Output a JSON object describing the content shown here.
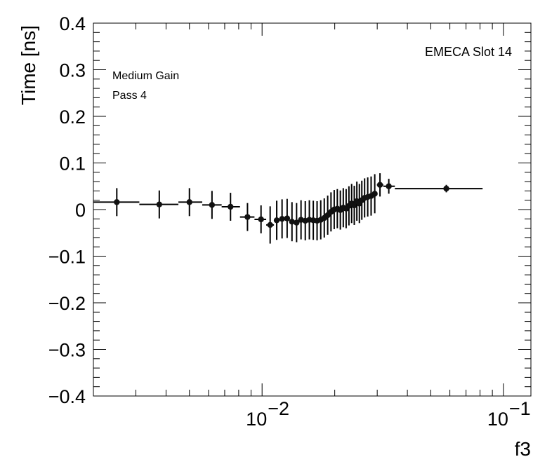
{
  "chart_data": {
    "type": "scatter",
    "xlabel": "f3",
    "ylabel": "Time [ns]",
    "x_scale": "log",
    "xlim": [
      0.002,
      0.13
    ],
    "ylim": [
      -0.4,
      0.4
    ],
    "y_ticks": [
      {
        "value": 0.4,
        "label": "0.4"
      },
      {
        "value": 0.3,
        "label": "0.3"
      },
      {
        "value": 0.2,
        "label": "0.2"
      },
      {
        "value": 0.1,
        "label": "0.1"
      },
      {
        "value": 0.0,
        "label": "0"
      },
      {
        "value": -0.1,
        "label": "−0.1"
      },
      {
        "value": -0.2,
        "label": "−0.2"
      },
      {
        "value": -0.3,
        "label": "−0.3"
      },
      {
        "value": -0.4,
        "label": "−0.4"
      }
    ],
    "x_ticks": [
      {
        "value": 0.01,
        "base": "10",
        "exp": "−2"
      },
      {
        "value": 0.1,
        "base": "10",
        "exp": "−1"
      }
    ],
    "annotations": {
      "top_left_1": "Medium Gain",
      "top_left_2": "Pass 4",
      "top_right": "EMECA Slot 14"
    },
    "grid": false,
    "points": [
      {
        "x": 0.0025,
        "y": 0.016,
        "xlo": 0.002,
        "xhi": 0.0031,
        "yerr": 0.03
      },
      {
        "x": 0.00375,
        "y": 0.011,
        "xlo": 0.0031,
        "xhi": 0.0045,
        "yerr": 0.03
      },
      {
        "x": 0.005,
        "y": 0.016,
        "xlo": 0.0045,
        "xhi": 0.00565,
        "yerr": 0.03
      },
      {
        "x": 0.0062,
        "y": 0.01,
        "xlo": 0.00565,
        "xhi": 0.0068,
        "yerr": 0.03
      },
      {
        "x": 0.0074,
        "y": 0.006,
        "xlo": 0.0068,
        "xhi": 0.0081,
        "yerr": 0.03
      },
      {
        "x": 0.0087,
        "y": -0.016,
        "xlo": 0.0081,
        "xhi": 0.0093,
        "yerr": 0.03
      },
      {
        "x": 0.0099,
        "y": -0.021,
        "xlo": 0.0093,
        "xhi": 0.0104,
        "yerr": 0.03
      },
      {
        "x": 0.0108,
        "y": -0.033,
        "xlo": 0.0104,
        "xhi": 0.0112,
        "yerr": 0.04
      },
      {
        "x": 0.0115,
        "y": -0.023,
        "xlo": 0.0112,
        "xhi": 0.0118,
        "yerr": 0.042
      },
      {
        "x": 0.0121,
        "y": -0.02,
        "xlo": 0.0118,
        "xhi": 0.0124,
        "yerr": 0.042
      },
      {
        "x": 0.0127,
        "y": -0.019,
        "xlo": 0.0124,
        "xhi": 0.013,
        "yerr": 0.042
      },
      {
        "x": 0.0133,
        "y": -0.026,
        "xlo": 0.013,
        "xhi": 0.0136,
        "yerr": 0.042
      },
      {
        "x": 0.0139,
        "y": -0.028,
        "xlo": 0.0136,
        "xhi": 0.0142,
        "yerr": 0.042
      },
      {
        "x": 0.0145,
        "y": -0.022,
        "xlo": 0.0142,
        "xhi": 0.0148,
        "yerr": 0.042
      },
      {
        "x": 0.0151,
        "y": -0.024,
        "xlo": 0.0148,
        "xhi": 0.0154,
        "yerr": 0.042
      },
      {
        "x": 0.0157,
        "y": -0.022,
        "xlo": 0.0154,
        "xhi": 0.016,
        "yerr": 0.042
      },
      {
        "x": 0.0163,
        "y": -0.023,
        "xlo": 0.016,
        "xhi": 0.0166,
        "yerr": 0.042
      },
      {
        "x": 0.0169,
        "y": -0.024,
        "xlo": 0.0166,
        "xhi": 0.0172,
        "yerr": 0.042
      },
      {
        "x": 0.0175,
        "y": -0.022,
        "xlo": 0.0172,
        "xhi": 0.0178,
        "yerr": 0.042
      },
      {
        "x": 0.0181,
        "y": -0.018,
        "xlo": 0.0178,
        "xhi": 0.0184,
        "yerr": 0.042
      },
      {
        "x": 0.0187,
        "y": -0.012,
        "xlo": 0.0184,
        "xhi": 0.019,
        "yerr": 0.042
      },
      {
        "x": 0.0193,
        "y": -0.005,
        "xlo": 0.019,
        "xhi": 0.0196,
        "yerr": 0.042
      },
      {
        "x": 0.0199,
        "y": 0.0,
        "xlo": 0.0196,
        "xhi": 0.0202,
        "yerr": 0.042
      },
      {
        "x": 0.0205,
        "y": 0.002,
        "xlo": 0.0202,
        "xhi": 0.0208,
        "yerr": 0.042
      },
      {
        "x": 0.0211,
        "y": -0.001,
        "xlo": 0.0208,
        "xhi": 0.0214,
        "yerr": 0.042
      },
      {
        "x": 0.0217,
        "y": 0.004,
        "xlo": 0.0214,
        "xhi": 0.022,
        "yerr": 0.042
      },
      {
        "x": 0.0223,
        "y": 0.002,
        "xlo": 0.022,
        "xhi": 0.0226,
        "yerr": 0.042
      },
      {
        "x": 0.0229,
        "y": 0.008,
        "xlo": 0.0226,
        "xhi": 0.0232,
        "yerr": 0.042
      },
      {
        "x": 0.0235,
        "y": 0.013,
        "xlo": 0.0232,
        "xhi": 0.0238,
        "yerr": 0.042
      },
      {
        "x": 0.0241,
        "y": 0.009,
        "xlo": 0.0238,
        "xhi": 0.0244,
        "yerr": 0.042
      },
      {
        "x": 0.0247,
        "y": 0.018,
        "xlo": 0.0244,
        "xhi": 0.025,
        "yerr": 0.042
      },
      {
        "x": 0.0253,
        "y": 0.013,
        "xlo": 0.025,
        "xhi": 0.0256,
        "yerr": 0.042
      },
      {
        "x": 0.0259,
        "y": 0.02,
        "xlo": 0.0256,
        "xhi": 0.0262,
        "yerr": 0.042
      },
      {
        "x": 0.0266,
        "y": 0.025,
        "xlo": 0.0262,
        "xhi": 0.027,
        "yerr": 0.042
      },
      {
        "x": 0.0274,
        "y": 0.027,
        "xlo": 0.027,
        "xhi": 0.0278,
        "yerr": 0.042
      },
      {
        "x": 0.0283,
        "y": 0.029,
        "xlo": 0.0278,
        "xhi": 0.0288,
        "yerr": 0.042
      },
      {
        "x": 0.0293,
        "y": 0.034,
        "xlo": 0.0288,
        "xhi": 0.0299,
        "yerr": 0.042
      },
      {
        "x": 0.0308,
        "y": 0.053,
        "xlo": 0.0299,
        "xhi": 0.0318,
        "yerr": 0.025
      },
      {
        "x": 0.0335,
        "y": 0.05,
        "xlo": 0.0318,
        "xhi": 0.0355,
        "yerr": 0.016
      },
      {
        "x": 0.058,
        "y": 0.045,
        "xlo": 0.0355,
        "xhi": 0.082,
        "yerr": 0.008
      }
    ]
  }
}
